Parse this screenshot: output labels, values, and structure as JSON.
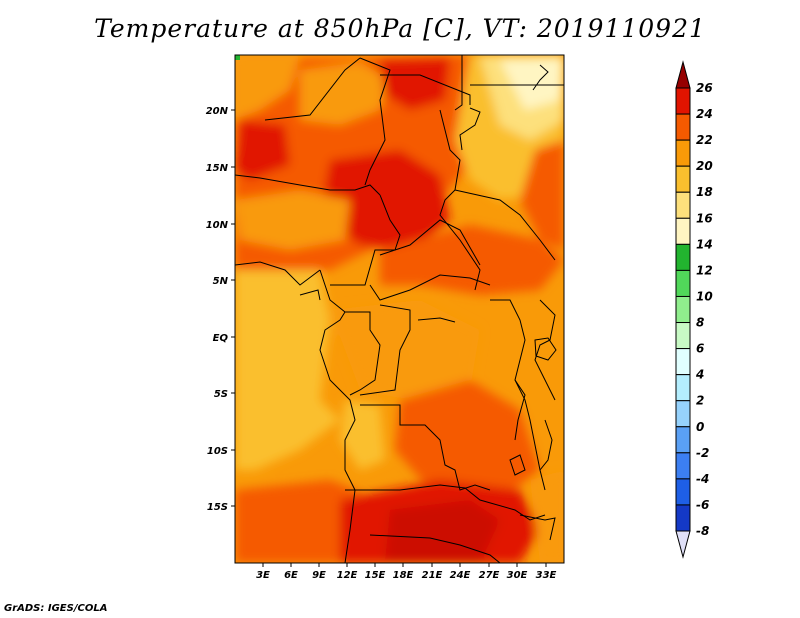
{
  "title": "Temperature at 850hPa [C], VT: 2019110921",
  "credit": "GrADS: IGES/COLA",
  "map": {
    "lon_labels": [
      "3E",
      "6E",
      "9E",
      "12E",
      "15E",
      "18E",
      "21E",
      "24E",
      "27E",
      "30E",
      "33E"
    ],
    "lat_labels": [
      "20N",
      "15N",
      "10N",
      "5N",
      "EQ",
      "5S",
      "10S",
      "15S"
    ]
  },
  "colorbar": {
    "levels": [
      "26",
      "24",
      "22",
      "20",
      "18",
      "16",
      "14",
      "12",
      "10",
      "8",
      "6",
      "4",
      "2",
      "0",
      "-2",
      "-4",
      "-6",
      "-8"
    ],
    "colors": [
      "#960000",
      "#e11400",
      "#f55a00",
      "#f99a08",
      "#fabf2e",
      "#fde07c",
      "#fff5c2",
      "#22b42f",
      "#51d85a",
      "#90ee8d",
      "#c8fac5",
      "#e1ffff",
      "#b4eefe",
      "#96d2fc",
      "#5aa0f5",
      "#3c7ff2",
      "#1e5fe6",
      "#1439c6",
      "#0a0a78"
    ]
  }
}
